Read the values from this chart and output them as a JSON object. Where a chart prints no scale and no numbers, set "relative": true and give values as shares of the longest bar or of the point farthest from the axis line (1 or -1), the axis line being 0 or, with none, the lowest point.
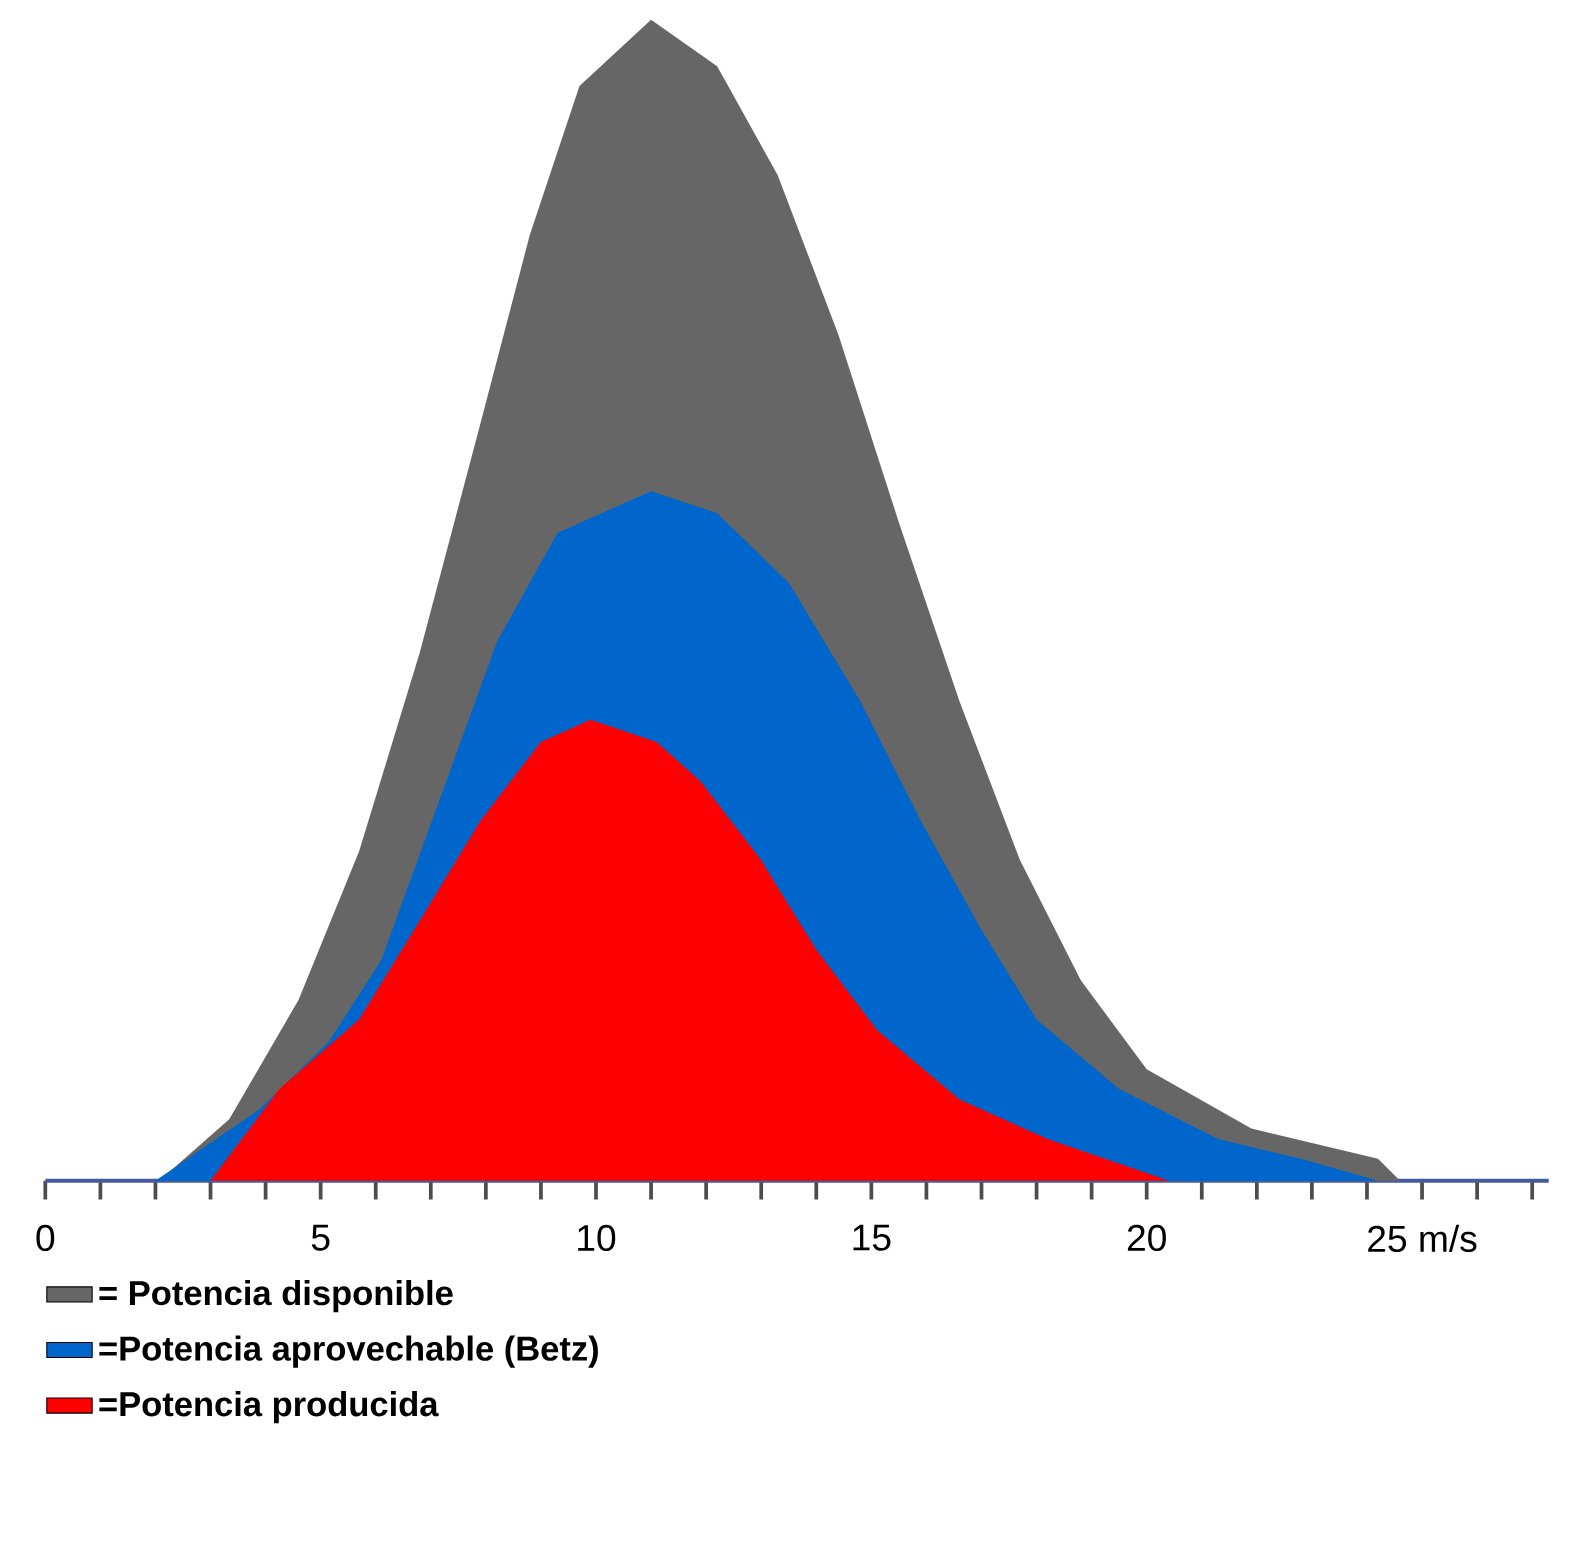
{
  "chart_data": {
    "type": "area",
    "relative": true,
    "x": [
      0,
      2.07,
      3.34,
      4.6,
      5.7,
      6.8,
      7.9,
      8.8,
      9.7,
      11.0,
      12.2,
      13.3,
      14.4,
      15.5,
      16.6,
      17.7,
      18.8,
      20.0,
      21.9,
      24.2,
      24.6,
      27.3
    ],
    "series": [
      {
        "name": "= Potencia disponible",
        "color": "#666666",
        "values": [
          0,
          0,
          0.053,
          0.156,
          0.284,
          0.455,
          0.652,
          0.815,
          0.943,
          1.0,
          0.96,
          0.866,
          0.729,
          0.567,
          0.413,
          0.276,
          0.173,
          0.096,
          0.045,
          0.019,
          0,
          0
        ]
      },
      {
        "name": "=Potencia aprovechable (Betz)",
        "color": "#0066cc",
        "x": [
          0,
          2.0,
          3.9,
          5.15,
          6.1,
          7.15,
          8.2,
          9.3,
          11.0,
          12.2,
          13.5,
          14.8,
          15.9,
          17.0,
          18.0,
          19.5,
          21.3,
          22.8,
          24.2,
          27.3
        ],
        "values": [
          0,
          0,
          0.062,
          0.12,
          0.19,
          0.327,
          0.464,
          0.558,
          0.594,
          0.575,
          0.515,
          0.413,
          0.31,
          0.216,
          0.139,
          0.079,
          0.036,
          0.019,
          0,
          0
        ]
      },
      {
        "name": "=Potencia producida",
        "color": "#ff0000",
        "x": [
          0,
          3.0,
          4.25,
          5.7,
          6.8,
          7.9,
          9.0,
          9.9,
          11.1,
          11.9,
          13.0,
          14.0,
          15.1,
          16.6,
          18.2,
          20.4,
          27.3
        ],
        "values": [
          0,
          0,
          0.079,
          0.139,
          0.224,
          0.31,
          0.378,
          0.397,
          0.378,
          0.344,
          0.276,
          0.199,
          0.13,
          0.07,
          0.036,
          0,
          0
        ]
      }
    ],
    "xlim": [
      0,
      27.3
    ],
    "xticks": [
      0,
      {
        "value": 1,
        "label": null
      },
      {
        "value": 2,
        "label": null
      },
      {
        "value": 3,
        "label": null
      },
      {
        "value": 4,
        "label": null
      },
      5,
      {
        "value": 6,
        "label": null
      },
      {
        "value": 7,
        "label": null
      },
      {
        "value": 8,
        "label": null
      },
      {
        "value": 9,
        "label": null
      },
      10,
      {
        "value": 11,
        "label": null
      },
      {
        "value": 12,
        "label": null
      },
      {
        "value": 13,
        "label": null
      },
      {
        "value": 14,
        "label": null
      },
      15,
      {
        "value": 16,
        "label": null
      },
      {
        "value": 17,
        "label": null
      },
      {
        "value": 18,
        "label": null
      },
      {
        "value": 19,
        "label": null
      },
      20,
      {
        "value": 21,
        "label": null
      },
      {
        "value": 22,
        "label": null
      },
      {
        "value": 23,
        "label": null
      },
      {
        "value": 24,
        "label": null
      },
      {
        "value": 25,
        "label": "25 m/s"
      },
      {
        "value": 26,
        "label": null
      },
      {
        "value": 27,
        "label": null
      }
    ],
    "legend": "bottom left",
    "grid": false
  }
}
